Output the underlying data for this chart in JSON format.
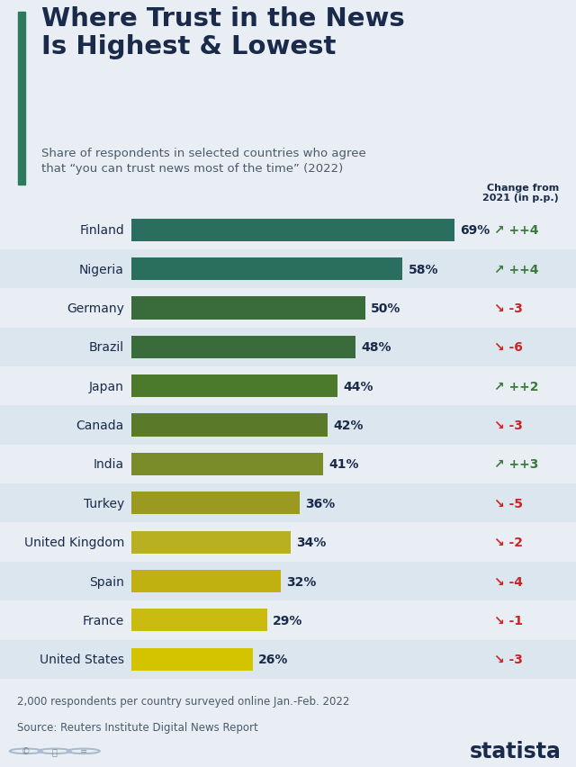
{
  "title": "Where Trust in the News\nIs Highest & Lowest",
  "subtitle": "Share of respondents in selected countries who agree\nthat “you can trust news most of the time” (2022)",
  "countries": [
    "Finland",
    "Nigeria",
    "Germany",
    "Brazil",
    "Japan",
    "Canada",
    "India",
    "Turkey",
    "United Kingdom",
    "Spain",
    "France",
    "United States"
  ],
  "values": [
    69,
    58,
    50,
    48,
    44,
    42,
    41,
    36,
    34,
    32,
    29,
    26
  ],
  "changes": [
    "+4",
    "+4",
    "-3",
    "-6",
    "+2",
    "-3",
    "+3",
    "-5",
    "-2",
    "-4",
    "-1",
    "-3"
  ],
  "change_positive": [
    true,
    true,
    false,
    false,
    true,
    false,
    true,
    false,
    false,
    false,
    false,
    false
  ],
  "bar_colors": [
    "#2a6e5e",
    "#2a6e5e",
    "#3a6b3a",
    "#3a6b3a",
    "#4a7a2a",
    "#5a7a2a",
    "#7a8c2a",
    "#9a9a20",
    "#b8b020",
    "#c0b010",
    "#cabb10",
    "#d4c400"
  ],
  "background_color": "#e8eef4",
  "row_alt_color": "#dce6ef",
  "title_color": "#1a2a4a",
  "subtitle_color": "#4a5a6a",
  "change_pos_color": "#3a7a3a",
  "change_neg_color": "#cc2222",
  "footer_text1": "2,000 respondents per country surveyed online Jan.-Feb. 2022",
  "footer_text2": "Source: Reuters Institute Digital News Report",
  "change_header": "Change from\n2021 (in p.p.)",
  "accent_color": "#2d7a5e"
}
